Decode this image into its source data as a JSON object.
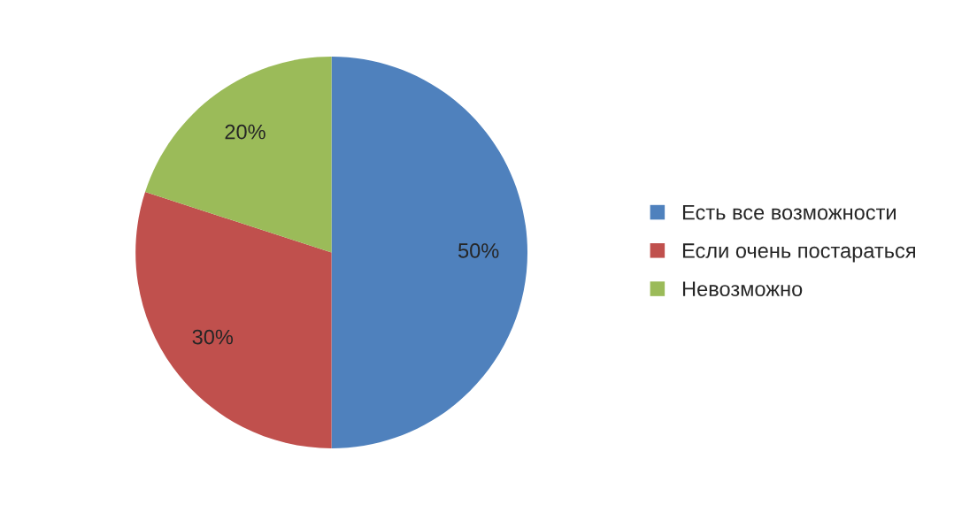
{
  "chart_data": {
    "type": "pie",
    "categories": [
      "Есть все возможности",
      "Если очень постараться",
      "Невозможно"
    ],
    "values": [
      50,
      30,
      20
    ],
    "colors": [
      "#4f81bd",
      "#c0504d",
      "#9bbb59"
    ],
    "value_labels": [
      "50%",
      "30%",
      "20%"
    ],
    "legend": "right"
  }
}
